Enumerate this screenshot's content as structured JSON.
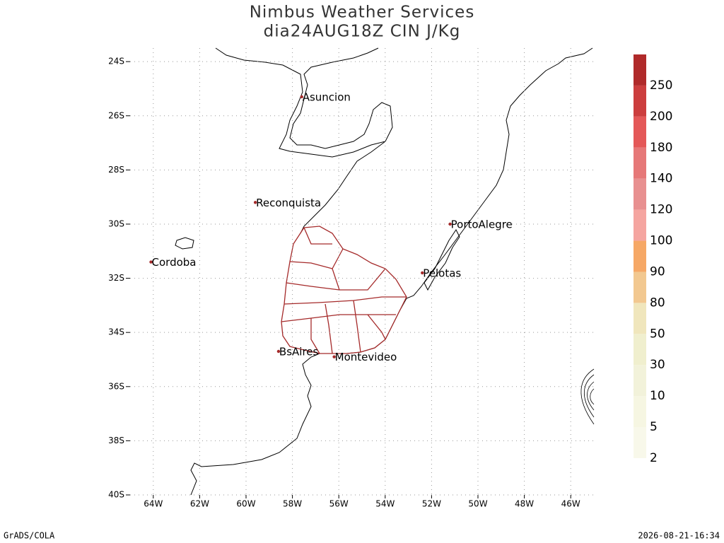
{
  "chart_data": {
    "type": "map",
    "title": "Nimbus Weather Services",
    "subtitle": "dia24AUG18Z CIN J/Kg",
    "xlim": [
      -65,
      -45
    ],
    "ylim": [
      -40,
      -23.5
    ],
    "xticks": [
      {
        "value": -64,
        "label": "64W"
      },
      {
        "value": -62,
        "label": "62W"
      },
      {
        "value": -60,
        "label": "60W"
      },
      {
        "value": -58,
        "label": "58W"
      },
      {
        "value": -56,
        "label": "56W"
      },
      {
        "value": -54,
        "label": "54W"
      },
      {
        "value": -52,
        "label": "52W"
      },
      {
        "value": -50,
        "label": "50W"
      },
      {
        "value": -48,
        "label": "48W"
      },
      {
        "value": -46,
        "label": "46W"
      }
    ],
    "yticks": [
      {
        "value": -24,
        "label": "24S"
      },
      {
        "value": -26,
        "label": "26S"
      },
      {
        "value": -28,
        "label": "28S"
      },
      {
        "value": -30,
        "label": "30S"
      },
      {
        "value": -32,
        "label": "32S"
      },
      {
        "value": -34,
        "label": "34S"
      },
      {
        "value": -36,
        "label": "36S"
      },
      {
        "value": -38,
        "label": "38S"
      },
      {
        "value": -40,
        "label": "40S"
      }
    ],
    "grid": true,
    "cities": [
      {
        "name": "Asuncion",
        "lon": -57.6,
        "lat": -25.3
      },
      {
        "name": "Reconquista",
        "lon": -59.6,
        "lat": -29.2
      },
      {
        "name": "Cordoba",
        "lon": -64.1,
        "lat": -31.4
      },
      {
        "name": "PortoAlegre",
        "lon": -51.2,
        "lat": -30.0
      },
      {
        "name": "Pelotas",
        "lon": -52.4,
        "lat": -31.8
      },
      {
        "name": "BsAires",
        "lon": -58.6,
        "lat": -34.7
      },
      {
        "name": "Montevideo",
        "lon": -56.2,
        "lat": -34.9
      }
    ],
    "city_color": "#a52a2a",
    "colorbar": {
      "levels": [
        2,
        5,
        10,
        30,
        50,
        80,
        90,
        100,
        120,
        140,
        180,
        200,
        250
      ],
      "colors": [
        "#f8f8ea",
        "#f6f6e2",
        "#f2f2da",
        "#f0efce",
        "#f0e6bc",
        "#f2c890",
        "#f6a866",
        "#f5a5a0",
        "#e89090",
        "#e67878",
        "#e45858",
        "#cc3e3e",
        "#b02a2a"
      ]
    },
    "footer_left": "GrADS/COLA",
    "footer_right": "2026-08-21-16:34"
  }
}
